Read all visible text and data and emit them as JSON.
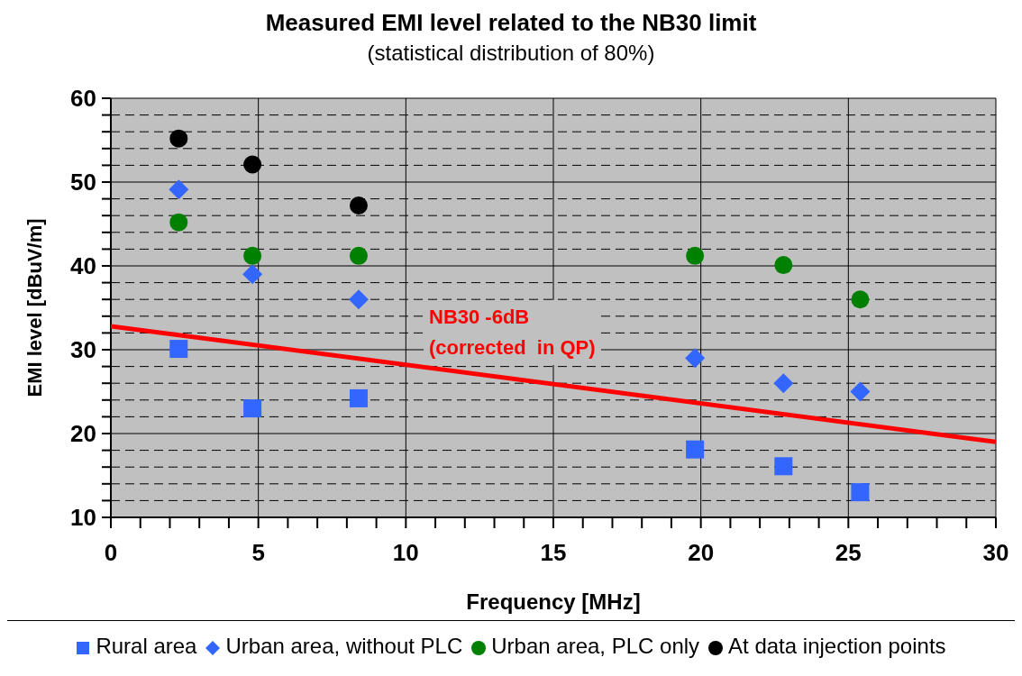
{
  "chart_data": {
    "type": "scatter",
    "title": "Measured EMI level related to the NB30 limit",
    "subtitle": "(statistical distribution of 80%)",
    "xlabel": "Frequency [MHz]",
    "ylabel": "EMI level [dBuV/m]",
    "xlim": [
      0,
      30
    ],
    "ylim": [
      10,
      60
    ],
    "xticks": [
      0,
      {
        "value": 1,
        "label": null
      },
      {
        "value": 2,
        "label": null
      },
      {
        "value": 3,
        "label": null
      },
      {
        "value": 4,
        "label": null
      },
      5,
      {
        "value": 6,
        "label": null
      },
      {
        "value": 7,
        "label": null
      },
      {
        "value": 8,
        "label": null
      },
      {
        "value": 9,
        "label": null
      },
      10,
      {
        "value": 11,
        "label": null
      },
      {
        "value": 12,
        "label": null
      },
      {
        "value": 13,
        "label": null
      },
      {
        "value": 14,
        "label": null
      },
      15,
      {
        "value": 16,
        "label": null
      },
      {
        "value": 17,
        "label": null
      },
      {
        "value": 18,
        "label": null
      },
      {
        "value": 19,
        "label": null
      },
      20,
      {
        "value": 21,
        "label": null
      },
      {
        "value": 22,
        "label": null
      },
      {
        "value": 23,
        "label": null
      },
      {
        "value": 24,
        "label": null
      },
      25,
      {
        "value": 26,
        "label": null
      },
      {
        "value": 27,
        "label": null
      },
      {
        "value": 28,
        "label": null
      },
      {
        "value": 29,
        "label": null
      },
      30
    ],
    "yticks": [
      10,
      {
        "value": 12,
        "label": null
      },
      {
        "value": 14,
        "label": null
      },
      {
        "value": 16,
        "label": null
      },
      {
        "value": 18,
        "label": null
      },
      20,
      {
        "value": 22,
        "label": null
      },
      {
        "value": 24,
        "label": null
      },
      {
        "value": 26,
        "label": null
      },
      {
        "value": 28,
        "label": null
      },
      30,
      {
        "value": 32,
        "label": null
      },
      {
        "value": 34,
        "label": null
      },
      {
        "value": 36,
        "label": null
      },
      {
        "value": 38,
        "label": null
      },
      40,
      {
        "value": 42,
        "label": null
      },
      {
        "value": 44,
        "label": null
      },
      {
        "value": 46,
        "label": null
      },
      {
        "value": 48,
        "label": null
      },
      50,
      {
        "value": 52,
        "label": null
      },
      {
        "value": 54,
        "label": null
      },
      {
        "value": 56,
        "label": null
      },
      {
        "value": 58,
        "label": null
      },
      60
    ],
    "grid": true,
    "legend": "bottom",
    "series": [
      {
        "name": "Rural area",
        "color": "#3366ff",
        "marker": "square",
        "x": [
          2.3,
          4.8,
          8.4,
          19.8,
          22.8,
          25.4
        ],
        "values": [
          30.1,
          23.0,
          24.2,
          18.1,
          16.1,
          13.0
        ]
      },
      {
        "name": "Urban area, without PLC",
        "color": "#3366ff",
        "marker": "diamond",
        "x": [
          2.3,
          4.8,
          8.4,
          19.8,
          22.8,
          25.4
        ],
        "values": [
          49.1,
          39.0,
          36.0,
          29.0,
          26.0,
          25.0
        ]
      },
      {
        "name": "Urban area, PLC only",
        "color": "#008000",
        "marker": "circle",
        "x": [
          2.3,
          4.8,
          8.4,
          19.8,
          22.8,
          25.4
        ],
        "values": [
          45.2,
          41.2,
          41.2,
          41.2,
          40.1,
          36.0
        ]
      },
      {
        "name": "At data injection points",
        "color": "#000000",
        "marker": "circle",
        "x": [
          2.3,
          4.8,
          8.4
        ],
        "values": [
          55.2,
          52.1,
          47.2
        ]
      },
      {
        "type": "line",
        "color": "#ff0000",
        "marker": "none",
        "x": [
          0,
          30
        ],
        "values": [
          32.8,
          19.0
        ]
      }
    ],
    "annotations": [
      "NB30 -6dB\n(corrected  in QP)"
    ]
  }
}
